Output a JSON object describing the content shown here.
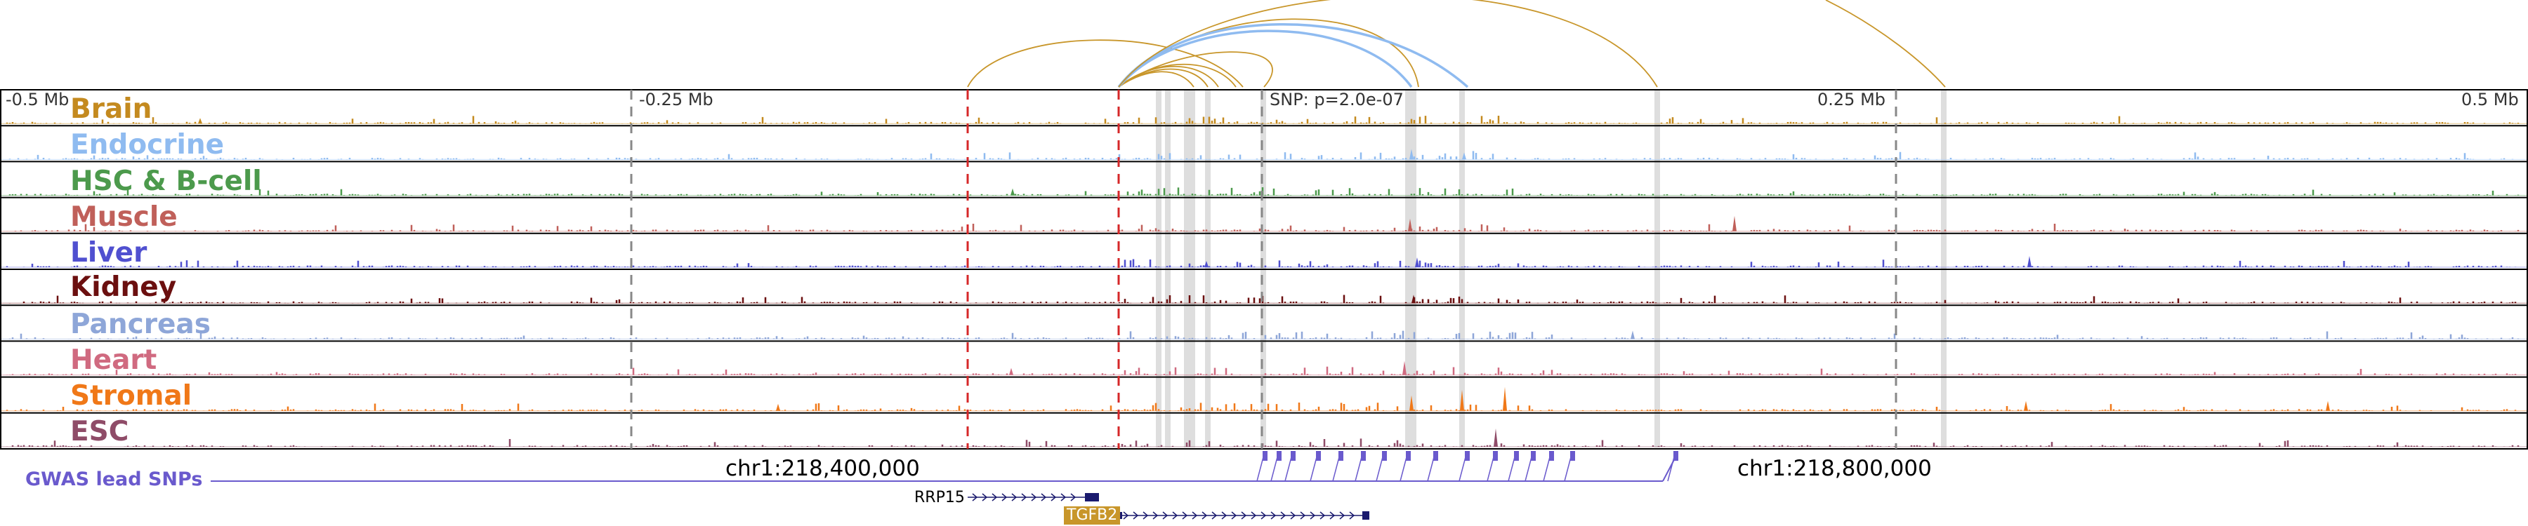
{
  "scale": {
    "left": "-0.5 Mb",
    "left_quarter": "-0.25 Mb",
    "right_quarter": "0.25 Mb",
    "right": "0.5 Mb"
  },
  "snp_label": "SNP: p=2.0e-07",
  "tracks": [
    {
      "name": "Brain",
      "color": "#c48a1f"
    },
    {
      "name": "Endocrine",
      "color": "#8fbbf0"
    },
    {
      "name": "HSC & B-cell",
      "color": "#4c9a4c"
    },
    {
      "name": "Muscle",
      "color": "#c0605a"
    },
    {
      "name": "Liver",
      "color": "#5050d0"
    },
    {
      "name": "Kidney",
      "color": "#6b0f0f"
    },
    {
      "name": "Pancreas",
      "color": "#8ea6d8"
    },
    {
      "name": "Heart",
      "color": "#d06a80"
    },
    {
      "name": "Stromal",
      "color": "#f07818"
    },
    {
      "name": "ESC",
      "color": "#8f4c68"
    }
  ],
  "coordinates": {
    "left": "chr1:218,400,000",
    "right": "chr1:218,800,000"
  },
  "gwas": {
    "label": "GWAS lead SNPs",
    "color": "#6a5acd"
  },
  "genes": [
    {
      "name": "RRP15",
      "color": "#1a1a6e",
      "text_color": "#000000"
    },
    {
      "name": "TGFB2",
      "color": "#1a1a6e",
      "label_bg": "#c8962a",
      "text_color": "#ffffff"
    }
  ],
  "colors": {
    "arc_gold": "#c8962a",
    "arc_blue": "#8fbbf0",
    "highlight": "#cccccc",
    "dashed_red": "#d62728"
  }
}
